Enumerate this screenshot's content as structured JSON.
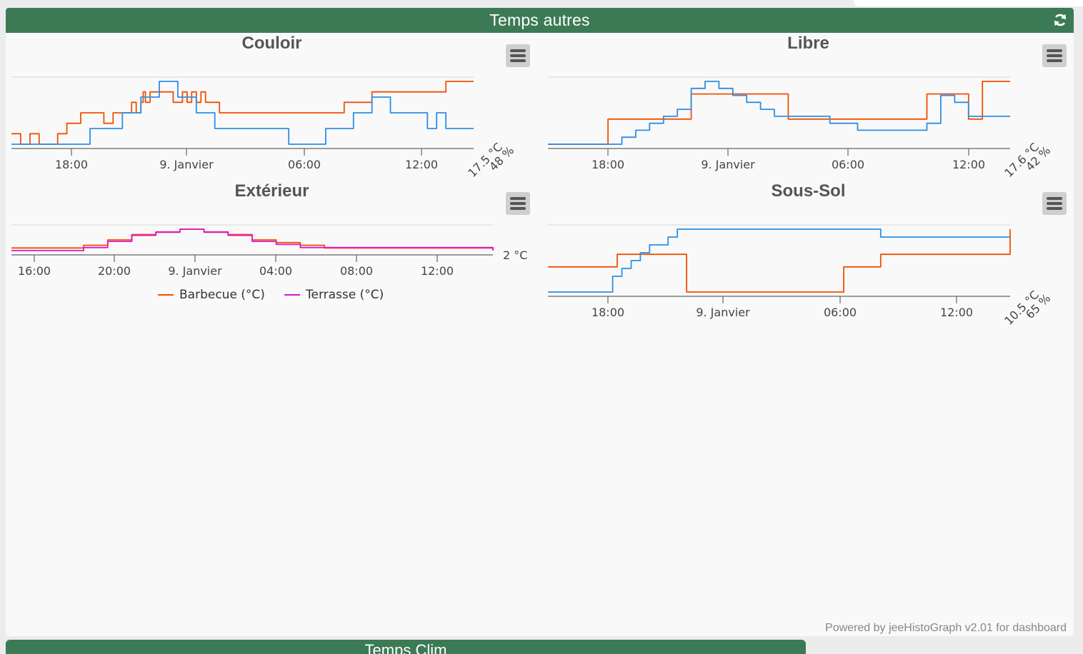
{
  "panel": {
    "title": "Temps autres",
    "footer": "Powered by jeeHistoGraph v2.01 for dashboard",
    "refresh_icon": "refresh-icon"
  },
  "next_panel": {
    "title": "Temps Clim"
  },
  "colors": {
    "header": "#3b7a55",
    "orange": "#f24f00",
    "blue": "#2b8ee8",
    "magenta": "#e016c8"
  },
  "chart_data": [
    {
      "id": "couloir",
      "type": "line",
      "title": "Couloir",
      "x_ticks": [
        "18:00",
        "9. Janvier",
        "06:00",
        "12:00"
      ],
      "y_labels": [
        "17.5 °C",
        "48 %"
      ],
      "series": [
        {
          "color": "#f24f00",
          "x": [
            0,
            2,
            4,
            6,
            8,
            10,
            12,
            13,
            15,
            17,
            19,
            20,
            22,
            24,
            25,
            26,
            27,
            28,
            28.5,
            29,
            30,
            31,
            32,
            33,
            34,
            35,
            36,
            37,
            38,
            39,
            40,
            41,
            42,
            43,
            44,
            45,
            46,
            47,
            48,
            49,
            50,
            51,
            52,
            53,
            54,
            55,
            56,
            57,
            58,
            59,
            60,
            61,
            62,
            63,
            64,
            65,
            66,
            67,
            68,
            69,
            70,
            71,
            72,
            73,
            74,
            75,
            76,
            77,
            78,
            79,
            80,
            81,
            82,
            83,
            84,
            85,
            86,
            87,
            88,
            89,
            90,
            91,
            92,
            93,
            94,
            95,
            96,
            97,
            98,
            99,
            100
          ],
          "y": [
            17.3,
            17.2,
            17.3,
            17.2,
            17.2,
            17.3,
            17.4,
            17.4,
            17.5,
            17.5,
            17.5,
            17.4,
            17.5,
            17.5,
            17.5,
            17.6,
            17.5,
            17.6,
            17.7,
            17.6,
            17.7,
            17.7,
            17.7,
            17.7,
            17.7,
            17.6,
            17.6,
            17.7,
            17.6,
            17.7,
            17.6,
            17.7,
            17.6,
            17.6,
            17.6,
            17.5,
            17.5,
            17.5,
            17.5,
            17.5,
            17.5,
            17.5,
            17.5,
            17.5,
            17.5,
            17.5,
            17.5,
            17.5,
            17.5,
            17.5,
            17.5,
            17.5,
            17.5,
            17.5,
            17.5,
            17.5,
            17.5,
            17.5,
            17.5,
            17.5,
            17.5,
            17.5,
            17.6,
            17.6,
            17.6,
            17.6,
            17.6,
            17.6,
            17.7,
            17.7,
            17.7,
            17.7,
            17.7,
            17.7,
            17.7,
            17.7,
            17.7,
            17.7,
            17.7,
            17.7,
            17.7,
            17.7,
            17.7,
            17.7,
            17.8,
            17.8,
            17.8,
            17.8,
            17.8,
            17.8,
            17.8
          ]
        },
        {
          "color": "#2b8ee8",
          "x": [
            0,
            5,
            10,
            15,
            16,
            17,
            18,
            20,
            22,
            24,
            26,
            28,
            30,
            32,
            34,
            36,
            38,
            40,
            42,
            44,
            46,
            48,
            50,
            52,
            54,
            56,
            58,
            60,
            62,
            64,
            66,
            68,
            70,
            72,
            74,
            76,
            78,
            80,
            82,
            84,
            86,
            88,
            90,
            92,
            94,
            96,
            98,
            100
          ],
          "y": [
            44,
            44,
            44,
            44,
            44,
            45,
            45,
            45,
            45,
            46,
            46,
            47,
            47,
            48,
            48,
            47,
            47,
            46,
            46,
            45,
            45,
            45,
            45,
            45,
            45,
            45,
            45,
            44,
            44,
            44,
            44,
            45,
            45,
            45,
            46,
            46,
            47,
            47,
            46,
            46,
            46,
            46,
            45,
            46,
            45,
            45,
            45,
            45
          ]
        }
      ]
    },
    {
      "id": "libre",
      "type": "line",
      "title": "Libre",
      "x_ticks": [
        "18:00",
        "9. Janvier",
        "06:00",
        "12:00"
      ],
      "y_labels": [
        "17.6 °C",
        "42 %"
      ],
      "series": [
        {
          "color": "#f24f00",
          "x": [
            0,
            5,
            10,
            13,
            16,
            19,
            22,
            25,
            28,
            31,
            34,
            37,
            40,
            43,
            46,
            49,
            52,
            55,
            58,
            61,
            64,
            67,
            70,
            73,
            76,
            79,
            82,
            85,
            88,
            91,
            94,
            97,
            100
          ],
          "y": [
            17.2,
            17.2,
            17.2,
            17.4,
            17.4,
            17.4,
            17.4,
            17.4,
            17.4,
            17.6,
            17.6,
            17.6,
            17.6,
            17.6,
            17.6,
            17.6,
            17.4,
            17.4,
            17.4,
            17.4,
            17.4,
            17.4,
            17.4,
            17.4,
            17.4,
            17.4,
            17.6,
            17.6,
            17.6,
            17.4,
            17.7,
            17.7,
            17.7
          ]
        },
        {
          "color": "#2b8ee8",
          "x": [
            0,
            5,
            10,
            13,
            16,
            19,
            22,
            25,
            28,
            31,
            34,
            37,
            40,
            43,
            46,
            49,
            52,
            55,
            58,
            61,
            64,
            67,
            70,
            73,
            76,
            79,
            82,
            85,
            88,
            91,
            94,
            97,
            100
          ],
          "y": [
            41,
            41,
            41,
            41,
            41.5,
            42,
            42.5,
            43,
            43.5,
            45,
            45.5,
            45,
            44.5,
            44,
            43.5,
            43,
            43,
            43,
            43,
            42.5,
            42.5,
            42,
            42,
            42,
            42,
            42,
            42.5,
            44.5,
            44,
            43,
            43,
            43,
            43
          ]
        }
      ]
    },
    {
      "id": "exterieur",
      "type": "line",
      "title": "Extérieur",
      "x_ticks": [
        "16:00",
        "20:00",
        "9. Janvier",
        "04:00",
        "08:00",
        "12:00"
      ],
      "y_labels": [
        "2 °C"
      ],
      "legend": [
        "Barbecue (°C)",
        "Terrasse (°C)"
      ],
      "series": [
        {
          "name": "Barbecue (°C)",
          "color": "#f24f00",
          "x": [
            0,
            5,
            10,
            15,
            20,
            25,
            30,
            35,
            40,
            45,
            50,
            55,
            60,
            65,
            70,
            75,
            80,
            85,
            90,
            95,
            100
          ],
          "y": [
            2.3,
            2.3,
            2.3,
            2.4,
            2.6,
            2.8,
            2.9,
            3.0,
            2.9,
            2.8,
            2.6,
            2.5,
            2.4,
            2.3,
            2.3,
            2.3,
            2.3,
            2.3,
            2.3,
            2.3,
            2.2
          ]
        },
        {
          "name": "Terrasse (°C)",
          "color": "#e016c8",
          "x": [
            0,
            5,
            10,
            15,
            20,
            25,
            30,
            35,
            40,
            45,
            50,
            55,
            60,
            65,
            70,
            75,
            80,
            85,
            90,
            95,
            100
          ],
          "y": [
            2.2,
            2.2,
            2.2,
            2.3,
            2.5,
            2.7,
            2.8,
            2.9,
            2.8,
            2.7,
            2.5,
            2.4,
            2.3,
            2.3,
            2.3,
            2.3,
            2.3,
            2.3,
            2.3,
            2.3,
            2.2
          ]
        }
      ]
    },
    {
      "id": "sous-sol",
      "type": "line",
      "title": "Sous-Sol",
      "x_ticks": [
        "18:00",
        "9. Janvier",
        "06:00",
        "12:00"
      ],
      "y_labels": [
        "10.5 °C",
        "65 %"
      ],
      "series": [
        {
          "color": "#f24f00",
          "x": [
            0,
            5,
            10,
            12.5,
            15,
            18,
            21,
            24,
            27,
            30,
            36,
            42,
            48,
            54,
            60,
            64,
            66,
            70,
            72,
            78,
            84,
            90,
            96,
            100
          ],
          "y": [
            10.4,
            10.4,
            10.4,
            10.4,
            10.5,
            10.5,
            10.5,
            10.5,
            10.5,
            10.2,
            10.2,
            10.2,
            10.2,
            10.2,
            10.2,
            10.4,
            10.4,
            10.4,
            10.5,
            10.5,
            10.5,
            10.5,
            10.5,
            10.7
          ]
        },
        {
          "color": "#2b8ee8",
          "x": [
            0,
            5,
            10,
            12.5,
            14,
            16,
            18,
            20,
            22,
            24,
            26,
            28,
            30,
            36,
            42,
            48,
            54,
            60,
            66,
            70,
            72,
            78,
            84,
            90,
            96,
            100
          ],
          "y": [
            63,
            63,
            63,
            63,
            64,
            64.5,
            65,
            65.5,
            66,
            66,
            66.5,
            67,
            67,
            67,
            67,
            67,
            67,
            67,
            67,
            67,
            66.5,
            66.5,
            66.5,
            66.5,
            66.5,
            66.5
          ]
        }
      ]
    }
  ]
}
